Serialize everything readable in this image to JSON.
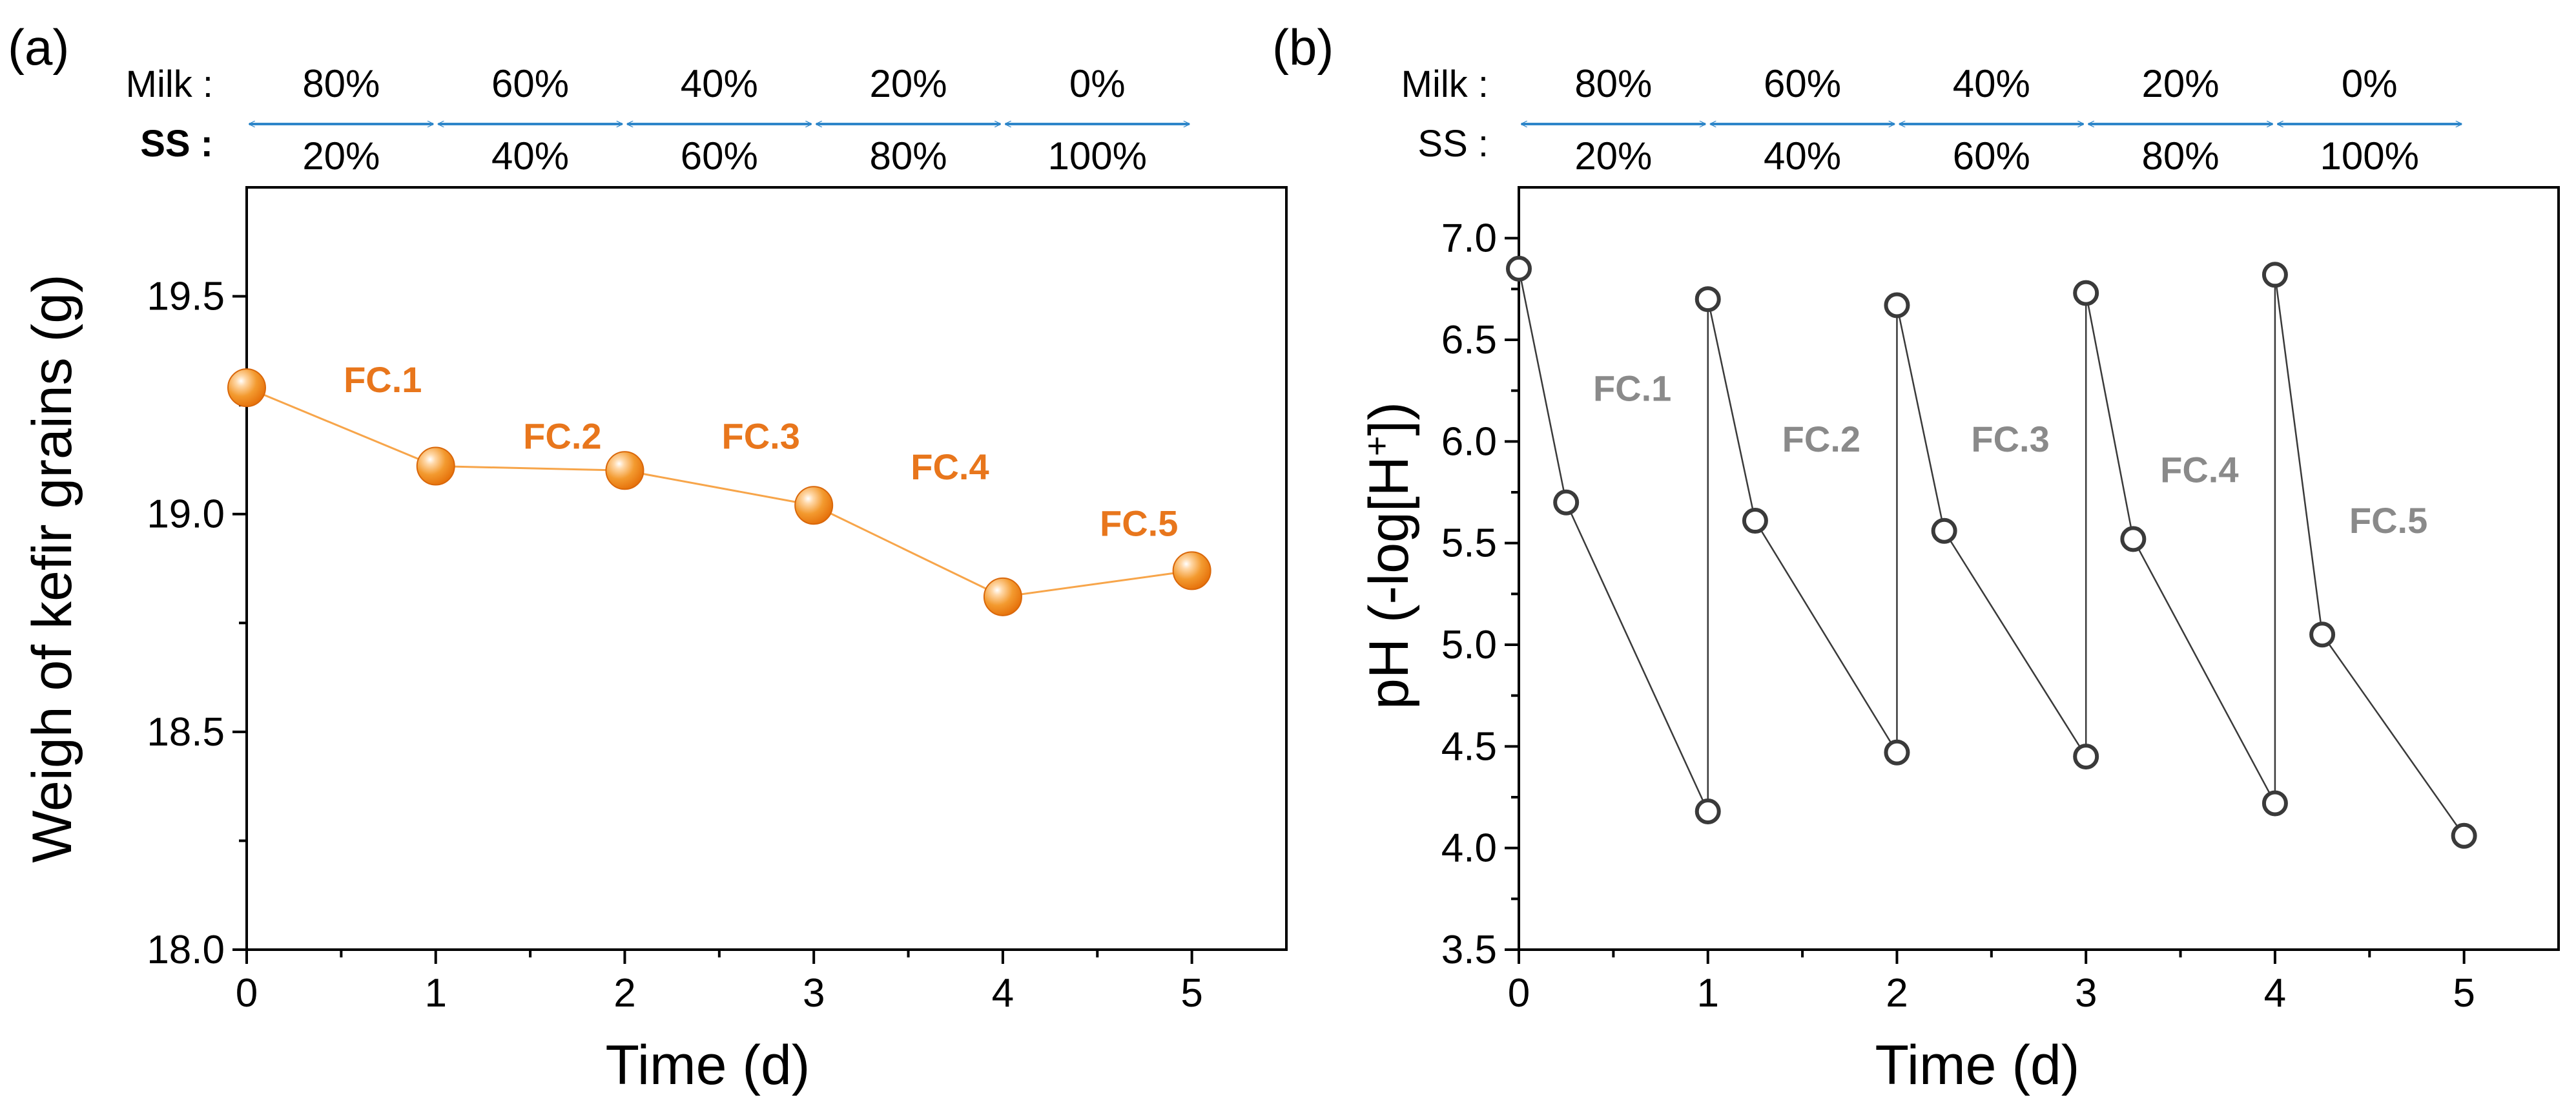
{
  "chart_data": [
    {
      "type": "line",
      "panel_label": "(a)",
      "xlabel": "Time (d)",
      "ylabel": "Weigh of kefir grains (g)",
      "xlim": [
        0,
        5.5
      ],
      "ylim": [
        18.0,
        19.75
      ],
      "xticks": [
        "0",
        "1",
        "2",
        "3",
        "4",
        "5"
      ],
      "yticks": [
        "18.0",
        "18.5",
        "19.0",
        "19.5"
      ],
      "yticks_values": [
        18.0,
        18.5,
        19.0,
        19.5
      ],
      "series": [
        {
          "name": "kefir grains weight",
          "color": "#f07f13",
          "x": [
            0,
            1,
            2,
            3,
            4,
            5
          ],
          "y": [
            19.29,
            19.11,
            19.1,
            19.02,
            18.81,
            18.87
          ]
        }
      ],
      "composition": {
        "milk_label": "Milk :",
        "ss_label": "SS :",
        "milk": [
          "80%",
          "60%",
          "40%",
          "20%",
          "0%"
        ],
        "ss": [
          "20%",
          "40%",
          "60%",
          "80%",
          "100%"
        ]
      },
      "annotations": [
        {
          "text": "FC.1",
          "x": 0.72,
          "y": 19.28
        },
        {
          "text": "FC.2",
          "x": 1.67,
          "y": 19.15
        },
        {
          "text": "FC.3",
          "x": 2.72,
          "y": 19.15
        },
        {
          "text": "FC.4",
          "x": 3.72,
          "y": 19.08
        },
        {
          "text": "FC.5",
          "x": 4.72,
          "y": 18.95
        }
      ]
    },
    {
      "type": "line",
      "panel_label": "(b)",
      "xlabel": "Time (d)",
      "ylabel_prefix": "pH (-log[H",
      "ylabel_sup": "+",
      "ylabel_suffix": "])",
      "xlim": [
        0,
        5.5
      ],
      "ylim": [
        3.5,
        7.25
      ],
      "xticks": [
        "0",
        "1",
        "2",
        "3",
        "4",
        "5"
      ],
      "yticks": [
        "3.5",
        "4.0",
        "4.5",
        "5.0",
        "5.5",
        "6.0",
        "6.5",
        "7.0"
      ],
      "yticks_values": [
        3.5,
        4.0,
        4.5,
        5.0,
        5.5,
        6.0,
        6.5,
        7.0
      ],
      "series": [
        {
          "name": "pH",
          "color": "#333333",
          "x": [
            0,
            0.25,
            1,
            1,
            1.25,
            2,
            2,
            2.25,
            3,
            3,
            3.25,
            4,
            4,
            4.25,
            5
          ],
          "y": [
            6.85,
            5.7,
            4.18,
            6.7,
            5.61,
            4.47,
            6.67,
            5.56,
            4.45,
            6.73,
            5.52,
            4.22,
            6.82,
            5.05,
            4.06
          ]
        }
      ],
      "composition": {
        "milk_label": "Milk :",
        "ss_label": "SS :",
        "milk": [
          "80%",
          "60%",
          "40%",
          "20%",
          "0%"
        ],
        "ss": [
          "20%",
          "40%",
          "60%",
          "80%",
          "100%"
        ]
      },
      "annotations": [
        {
          "text": "FC.1",
          "x": 0.6,
          "y": 6.2
        },
        {
          "text": "FC.2",
          "x": 1.6,
          "y": 5.95
        },
        {
          "text": "FC.3",
          "x": 2.6,
          "y": 5.95
        },
        {
          "text": "FC.4",
          "x": 3.6,
          "y": 5.8
        },
        {
          "text": "FC.5",
          "x": 4.6,
          "y": 5.55
        }
      ]
    }
  ]
}
